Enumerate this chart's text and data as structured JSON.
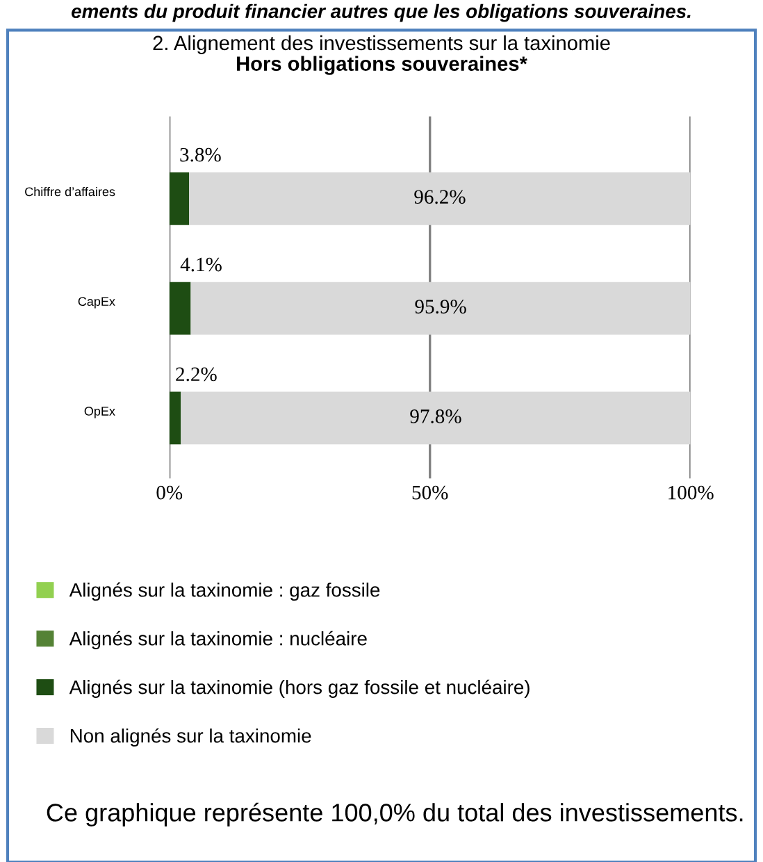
{
  "chart_data": {
    "type": "bar",
    "orientation": "horizontal",
    "stacked": true,
    "title": "2. Alignement des investissements sur la taxinomie",
    "subtitle": "Hors obligations souveraines*",
    "categories": [
      "Chiffre d’affaires",
      "CapEx",
      "OpEx"
    ],
    "series": [
      {
        "name": "Alignés sur la taxinomie : gaz fossile",
        "color": "#92d050",
        "values": [
          0,
          0,
          0
        ],
        "value_labels": [
          null,
          null,
          null
        ]
      },
      {
        "name": "Alignés sur la taxinomie : nucléaire",
        "color": "#548235",
        "values": [
          0,
          0,
          0
        ],
        "value_labels": [
          null,
          null,
          null
        ]
      },
      {
        "name": "Alignés sur la taxinomie (hors gaz fossile et nucléaire)",
        "color": "#1e4d13",
        "values": [
          3.8,
          4.1,
          2.2
        ],
        "value_labels": [
          "3.8%",
          "4.1%",
          "2.2%"
        ]
      },
      {
        "name": "Non alignés sur la taxinomie",
        "color": "#d9d9d9",
        "values": [
          96.2,
          95.9,
          97.8
        ],
        "value_labels": [
          "96.2%",
          "95.9%",
          "97.8%"
        ]
      }
    ],
    "xlim": [
      0,
      100
    ],
    "xticks": [
      {
        "value": 0,
        "label": "0%"
      },
      {
        "value": 50,
        "label": "50%"
      },
      {
        "value": 100,
        "label": "100%"
      }
    ],
    "grid": "x",
    "legend": "bottom",
    "annotations": [
      "ements du produit financier autres que les obligations souveraines.",
      "Ce graphique représente 100,0% du total des investissements."
    ]
  }
}
